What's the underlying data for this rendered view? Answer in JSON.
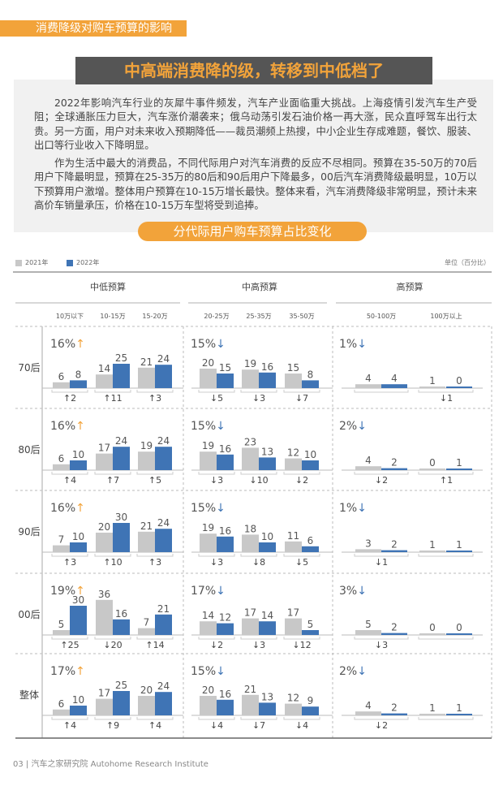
{
  "banner": "消费降级对购车预算的影响",
  "title": "中高端消费降的级，转移到中低档了",
  "paragraphs": [
    "2022年影响汽车行业的灰犀牛事件频发，汽车产业面临重大挑战。上海疫情引发汽车生产受阻；全球通胀压力巨大，汽车涨价潮袭来；俄乌动荡引发石油价格一再大涨，民众直呼驾车出行太贵。另一方面，用户对未来收入预期降低——裁员潮频上热搜，中小企业生存成难题，餐饮、服装、出口等行业收入下降明显。",
    "作为生活中最大的消费品，不同代际用户对汽车消费的反应不尽相同。预算在35-50万的70后用户下降最明显，预算在25-35万的80后和90后用户下降最多，00后汽车消费降级最明显，10万以下预算用户激增。整体用户预算在10-15万增长最快。整体来看，汽车消费降级非常明显，预计未来高价车销量承压，价格在10-15万车型将受到追捧。"
  ],
  "chart_title": "分代际用户购车预算占比变化",
  "footer": "03 | 汽车之家研究院  Autohome Research Institute",
  "colors": {
    "y2021": "#c8c8c8",
    "y2022": "#3f74b5",
    "up": "#f2a33a",
    "down": "#3f74b5",
    "accent": "#f2a33a"
  },
  "chart_data": {
    "type": "bar",
    "unit": "单位（百分比）",
    "legend": [
      "2021年",
      "2022年"
    ],
    "groups": [
      {
        "name": "中低预算",
        "categories": [
          "10万以下",
          "10-15万",
          "15-20万"
        ]
      },
      {
        "name": "中高预算",
        "categories": [
          "20-25万",
          "25-35万",
          "35-50万"
        ]
      },
      {
        "name": "高预算",
        "categories": [
          "50-100万",
          "100万以上"
        ]
      }
    ],
    "rows": [
      {
        "label": "70后",
        "group_share": [
          {
            "text": "16%",
            "dir": "up"
          },
          {
            "text": "15%",
            "dir": "down"
          },
          {
            "text": "1%",
            "dir": "down"
          }
        ],
        "y2021": [
          6,
          14,
          21,
          20,
          19,
          15,
          4,
          1
        ],
        "y2022": [
          8,
          25,
          24,
          15,
          16,
          8,
          4,
          0
        ],
        "change": [
          "↑2",
          "↑11",
          "↑3",
          "↓5",
          "↓3",
          "↓7",
          "",
          "↓1"
        ]
      },
      {
        "label": "80后",
        "group_share": [
          {
            "text": "16%",
            "dir": "up"
          },
          {
            "text": "15%",
            "dir": "down"
          },
          {
            "text": "2%",
            "dir": "down"
          }
        ],
        "y2021": [
          6,
          17,
          19,
          19,
          23,
          12,
          4,
          0
        ],
        "y2022": [
          10,
          24,
          24,
          16,
          13,
          10,
          2,
          1
        ],
        "change": [
          "↑4",
          "↑7",
          "↑5",
          "↓3",
          "↓10",
          "↓2",
          "↓2",
          "↑1"
        ]
      },
      {
        "label": "90后",
        "group_share": [
          {
            "text": "16%",
            "dir": "up"
          },
          {
            "text": "15%",
            "dir": "down"
          },
          {
            "text": "1%",
            "dir": "down"
          }
        ],
        "y2021": [
          7,
          20,
          21,
          19,
          18,
          11,
          3,
          1
        ],
        "y2022": [
          10,
          30,
          24,
          16,
          10,
          6,
          2,
          1
        ],
        "change": [
          "↑3",
          "↑10",
          "↑3",
          "↓3",
          "↓8",
          "↓5",
          "↓1",
          ""
        ]
      },
      {
        "label": "00后",
        "group_share": [
          {
            "text": "19%",
            "dir": "up"
          },
          {
            "text": "17%",
            "dir": "down"
          },
          {
            "text": "3%",
            "dir": "down"
          }
        ],
        "y2021": [
          5,
          36,
          7,
          14,
          17,
          17,
          5,
          0
        ],
        "y2022": [
          30,
          16,
          21,
          12,
          14,
          5,
          2,
          0
        ],
        "change": [
          "↑25",
          "↓20",
          "↑14",
          "↓2",
          "↓3",
          "↓12",
          "↓3",
          ""
        ]
      },
      {
        "label": "整体",
        "group_share": [
          {
            "text": "17%",
            "dir": "up"
          },
          {
            "text": "15%",
            "dir": "down"
          },
          {
            "text": "2%",
            "dir": "down"
          }
        ],
        "y2021": [
          6,
          17,
          20,
          20,
          21,
          12,
          4,
          1
        ],
        "y2022": [
          10,
          25,
          24,
          16,
          13,
          9,
          2,
          1
        ],
        "change": [
          "↑4",
          "↑9",
          "↑4",
          "↓4",
          "↓7",
          "↓4",
          "↓2",
          ""
        ]
      }
    ]
  }
}
